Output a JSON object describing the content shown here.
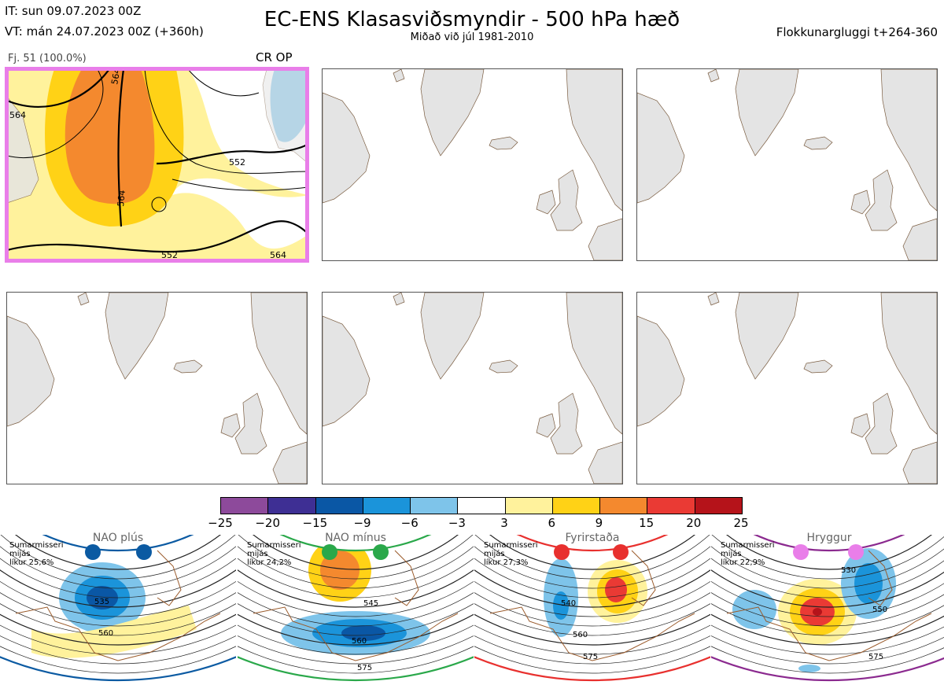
{
  "header": {
    "init_time": "IT: sun 09.07.2023 00Z",
    "valid_time": "VT: mán 24.07.2023 00Z  (+360h)",
    "title": "EC-ENS Klasasviðsmyndir - 500 hPa hæð",
    "subtitle": "Miðað við júl 1981-2010",
    "window": "Flokkunargluggi t+264-360"
  },
  "cluster": {
    "label": "Fj. 51 (100.0%)",
    "tag": "CR OP",
    "contour_labels": [
      "564",
      "564",
      "564",
      "552",
      "552",
      "564"
    ]
  },
  "colorbar": {
    "ticks": [
      "−25",
      "−20",
      "−15",
      "−9",
      "−6",
      "−3",
      "3",
      "6",
      "9",
      "15",
      "20",
      "25"
    ],
    "colors": [
      "#8d4a9b",
      "#3e2f94",
      "#0a57a5",
      "#1b94da",
      "#7ec4ea",
      "#ffffff",
      "#fff29c",
      "#ffd216",
      "#f4892e",
      "#ea3a34",
      "#b5131a"
    ]
  },
  "colors": {
    "selection_frame": "#e97ee9",
    "land": "#e4e4e4",
    "coast": "#7a5c40"
  },
  "prototypes": [
    {
      "name": "NAO plús",
      "line1": "Sumarmisseri",
      "line2": "mijás",
      "line3": "líkur 25,6%",
      "frame": "#0b5aa2",
      "dot": "#0b5aa2",
      "labels": [
        "535",
        "560"
      ]
    },
    {
      "name": "NAO mínus",
      "line1": "Sumarmisseri",
      "line2": "mijás",
      "line3": "líkur 24,2%",
      "frame": "#2aa84a",
      "dot": "#2aa84a",
      "labels": [
        "545",
        "560",
        "575"
      ]
    },
    {
      "name": "Fyrirstaða",
      "line1": "Sumarmisseri",
      "line2": "mijás",
      "line3": "líkur 27,3%",
      "frame": "#e8302e",
      "dot": "#e8302e",
      "labels": [
        "540",
        "560",
        "575"
      ]
    },
    {
      "name": "Hryggur",
      "line1": "Sumarmisseri",
      "line2": "mijás",
      "line3": "líkur 22,9%",
      "frame": "#8b2a8f",
      "dot": "#e97ee9",
      "labels": [
        "530",
        "550",
        "575"
      ]
    }
  ]
}
